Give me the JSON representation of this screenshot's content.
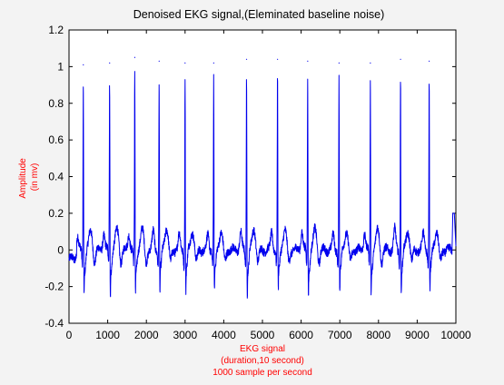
{
  "window": {
    "background": "#f3f3f3",
    "axes_background": "#ffffff"
  },
  "chart_data": {
    "type": "line",
    "title": "Denoised EKG signal,(Eleminated baseline noise)",
    "xlabel_lines": [
      "EKG signal",
      "(duration,10 second)",
      "1000 sample per second"
    ],
    "ylabel_lines": [
      "Amplitude",
      "(in mv)"
    ],
    "xlim": [
      0,
      10000
    ],
    "ylim": [
      -0.4,
      1.2
    ],
    "xticks": [
      0,
      1000,
      2000,
      3000,
      4000,
      5000,
      6000,
      7000,
      8000,
      9000,
      10000
    ],
    "yticks": [
      -0.4,
      -0.2,
      0,
      0.2,
      0.4,
      0.6,
      0.8,
      1,
      1.2
    ],
    "ytick_labels": [
      "-0.4",
      "-0.2",
      "0",
      "0.2",
      "0.4",
      "0.6",
      "0.8",
      "1",
      "1.2"
    ],
    "grid": false,
    "series_color": "#0000ee",
    "label_color": "#ff0000",
    "beats": [
      {
        "x": 370,
        "peak": 1.01,
        "s": -0.22,
        "p": 0.07,
        "t": 0.1
      },
      {
        "x": 1050,
        "peak": 1.02,
        "s": -0.24,
        "p": 0.09,
        "t": 0.11
      },
      {
        "x": 1700,
        "peak": 1.05,
        "s": -0.24,
        "p": 0.09,
        "t": 0.11
      },
      {
        "x": 2330,
        "peak": 1.03,
        "s": -0.24,
        "p": 0.1,
        "t": 0.12
      },
      {
        "x": 3000,
        "peak": 1.02,
        "s": -0.22,
        "p": 0.08,
        "t": 0.1
      },
      {
        "x": 3740,
        "peak": 1.02,
        "s": -0.24,
        "p": 0.08,
        "t": 0.1
      },
      {
        "x": 4590,
        "peak": 1.04,
        "s": -0.23,
        "p": 0.09,
        "t": 0.11
      },
      {
        "x": 5390,
        "peak": 1.04,
        "s": -0.22,
        "p": 0.1,
        "t": 0.11
      },
      {
        "x": 6170,
        "peak": 1.03,
        "s": -0.23,
        "p": 0.1,
        "t": 0.11
      },
      {
        "x": 6980,
        "peak": 1.02,
        "s": -0.22,
        "p": 0.08,
        "t": 0.1
      },
      {
        "x": 7790,
        "peak": 1.02,
        "s": -0.22,
        "p": 0.09,
        "t": 0.11
      },
      {
        "x": 8570,
        "peak": 1.04,
        "s": -0.25,
        "p": 0.11,
        "t": 0.1
      },
      {
        "x": 9310,
        "peak": 1.03,
        "s": -0.23,
        "p": 0.09,
        "t": 0.1
      }
    ],
    "end_segment": {
      "x_start": 9900,
      "x_end": 10000,
      "level": 0.2
    },
    "baseline": 0.0
  }
}
